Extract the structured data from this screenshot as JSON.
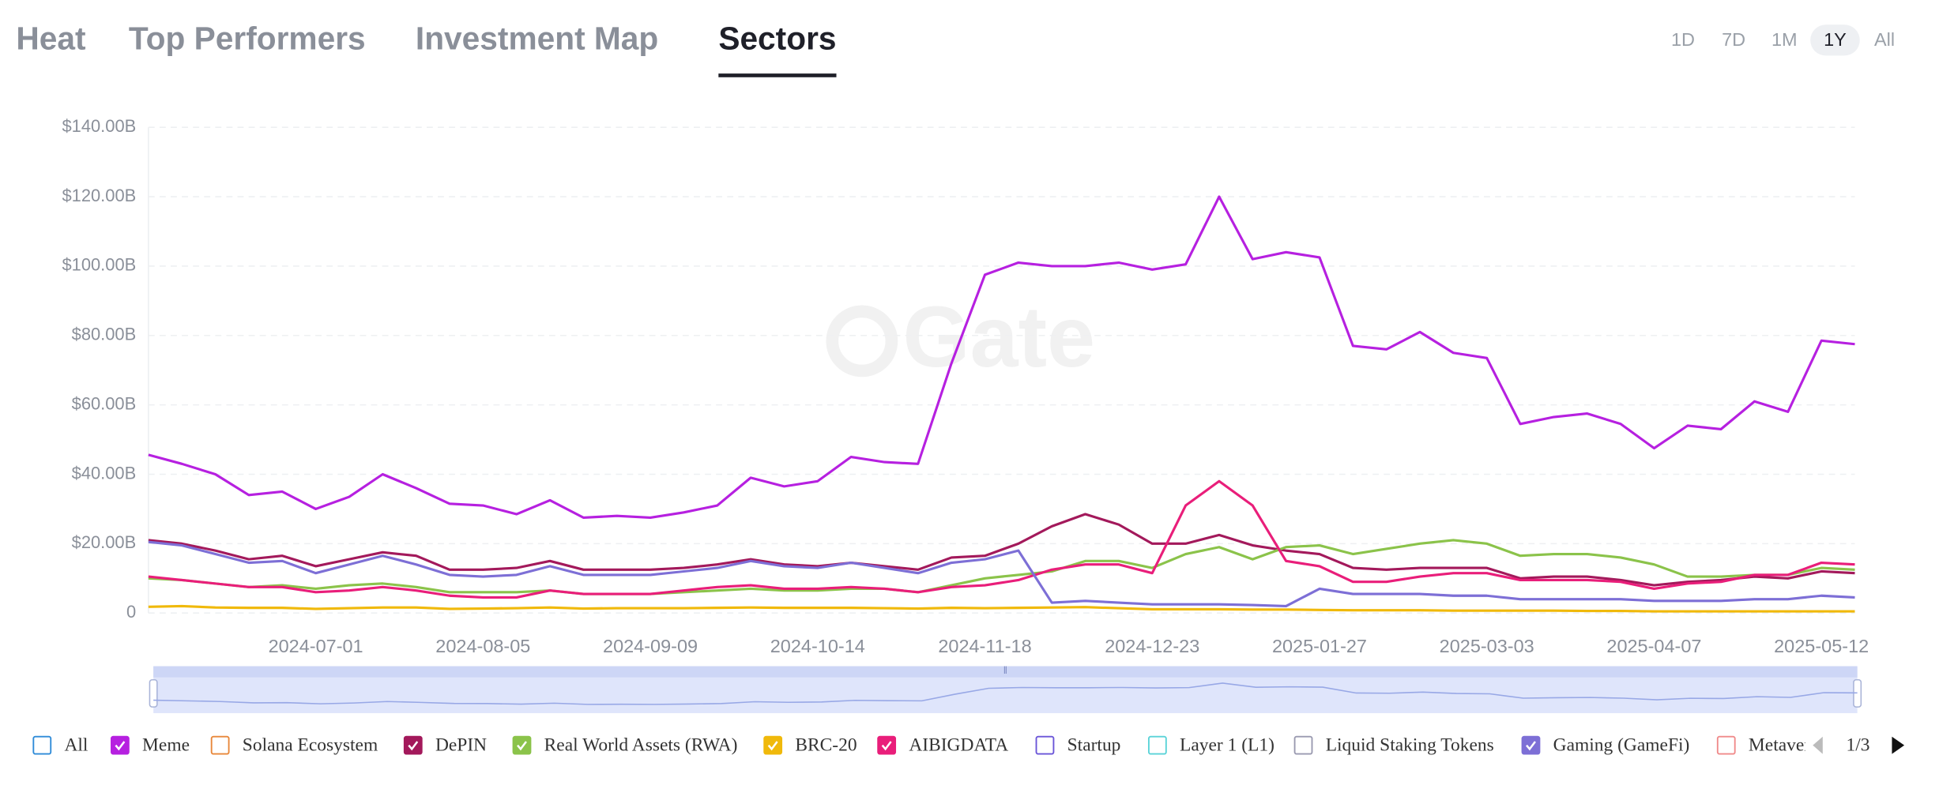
{
  "tabs": [
    "Heat",
    "Top Performers",
    "Investment Map",
    "Sectors"
  ],
  "active_tab": 3,
  "ranges": [
    "1D",
    "7D",
    "1M",
    "1Y",
    "All"
  ],
  "active_range": 3,
  "watermark": "Gate",
  "pagination": "1/3",
  "chart_data": {
    "type": "line",
    "categories": [
      null,
      null,
      null,
      null,
      null,
      "2024-07-01",
      null,
      null,
      null,
      null,
      "2024-08-05",
      null,
      null,
      null,
      null,
      "2024-09-09",
      null,
      null,
      null,
      null,
      "2024-10-14",
      null,
      null,
      null,
      null,
      "2024-11-18",
      null,
      null,
      null,
      null,
      "2024-12-23",
      null,
      null,
      null,
      null,
      "2025-01-27",
      null,
      null,
      null,
      null,
      "2025-03-03",
      null,
      null,
      null,
      null,
      "2025-04-07",
      null,
      null,
      null,
      null,
      "2025-05-12",
      null
    ],
    "ylim": [
      0,
      140
    ],
    "yticks": [
      0,
      {
        "value": 20,
        "label": "$20.00B"
      },
      {
        "value": 40,
        "label": "$40.00B"
      },
      {
        "value": 60,
        "label": "$60.00B"
      },
      {
        "value": 80,
        "label": "$80.00B"
      },
      {
        "value": 100,
        "label": "$100.00B"
      },
      {
        "value": 120,
        "label": "$120.00B"
      },
      {
        "value": 140,
        "label": "$140.00B"
      }
    ],
    "grid": true,
    "series": [
      {
        "name": "All",
        "color": "#2e8bd8",
        "checked": false
      },
      {
        "name": "Meme",
        "color": "#b620e0",
        "checked": true,
        "values": [
          45.6,
          43,
          40,
          34,
          35,
          30,
          33.5,
          40,
          36,
          31.5,
          31,
          28.5,
          32.5,
          27.5,
          28,
          27.5,
          29,
          31,
          39,
          36.5,
          38,
          45,
          43.5,
          43,
          72,
          97.5,
          101,
          100,
          100,
          101,
          99,
          100.5,
          120,
          102,
          104,
          102.5,
          77,
          76,
          81,
          75,
          73.5,
          54.5,
          56.5,
          57.5,
          54.5,
          47.5,
          54,
          53,
          61,
          58,
          78.5,
          77.5
        ]
      },
      {
        "name": "Solana Ecosystem",
        "color": "#e8873a",
        "checked": false
      },
      {
        "name": "DePIN",
        "color": "#a3195b",
        "checked": true,
        "values": [
          21,
          20,
          18,
          15.5,
          16.5,
          13.5,
          15.5,
          17.5,
          16.5,
          12.5,
          12.5,
          13,
          15,
          12.5,
          12.5,
          12.5,
          13,
          14,
          15.5,
          14,
          13.5,
          14.5,
          13.5,
          12.5,
          16,
          16.5,
          20,
          25,
          28.5,
          25.5,
          20,
          20,
          22.5,
          19.5,
          18,
          17,
          13,
          12.5,
          13,
          13,
          13,
          10,
          10.5,
          10.5,
          9.5,
          8,
          9,
          9.5,
          10.5,
          10,
          12,
          11.5
        ]
      },
      {
        "name": "Real World Assets (RWA)",
        "color": "#8bc34a",
        "checked": true,
        "values": [
          10,
          9.5,
          8.5,
          7.5,
          8,
          7,
          8,
          8.5,
          7.5,
          6,
          6,
          6,
          6.5,
          5.5,
          5.5,
          5.5,
          6,
          6.5,
          7,
          6.5,
          6.5,
          7,
          7,
          6,
          8,
          10,
          11,
          12,
          15,
          15,
          13,
          17,
          19,
          15.5,
          19,
          19.5,
          17,
          18.5,
          20,
          21,
          20,
          16.5,
          17,
          17,
          16,
          14,
          10.5,
          10.5,
          11,
          11,
          13,
          12.5
        ]
      },
      {
        "name": "BRC-20",
        "color": "#f0b90b",
        "checked": true,
        "values": [
          1.8,
          2,
          1.6,
          1.5,
          1.5,
          1.2,
          1.4,
          1.6,
          1.6,
          1.2,
          1.3,
          1.4,
          1.6,
          1.3,
          1.4,
          1.4,
          1.4,
          1.5,
          1.6,
          1.5,
          1.5,
          1.5,
          1.4,
          1.3,
          1.5,
          1.4,
          1.5,
          1.6,
          1.7,
          1.4,
          1.1,
          1.1,
          1.1,
          1,
          1,
          0.9,
          0.8,
          0.8,
          0.8,
          0.7,
          0.7,
          0.7,
          0.7,
          0.6,
          0.6,
          0.5,
          0.5,
          0.5,
          0.5,
          0.5,
          0.5,
          0.5
        ]
      },
      {
        "name": "AIBIGDATA",
        "color": "#e91e7a",
        "checked": true,
        "values": [
          10.5,
          9.5,
          8.5,
          7.5,
          7.5,
          6,
          6.5,
          7.5,
          6.5,
          5,
          4.5,
          4.5,
          6.5,
          5.5,
          5.5,
          5.5,
          6.5,
          7.5,
          8,
          7,
          7,
          7.5,
          7,
          6,
          7.5,
          8,
          9.5,
          12.5,
          14,
          14,
          11.5,
          31,
          38,
          31,
          15,
          13.5,
          9,
          9,
          10.5,
          11.5,
          11.5,
          9.5,
          9.5,
          9.5,
          9,
          7,
          8.5,
          9,
          11,
          11,
          14.5,
          14
        ]
      },
      {
        "name": "Startup",
        "color": "#6a55d8",
        "checked": false
      },
      {
        "name": "Layer 1 (L1)",
        "color": "#5ad3d8",
        "checked": false
      },
      {
        "name": "Liquid Staking Tokens",
        "color": "#9a9ab0",
        "checked": false
      },
      {
        "name": "Gaming (GameFi)",
        "color": "#7d6fd6",
        "checked": true,
        "values": [
          20.5,
          19.5,
          17,
          14.5,
          15,
          11.5,
          14,
          16.5,
          14,
          11,
          10.5,
          11,
          13.5,
          11,
          11,
          11,
          12,
          13,
          15,
          13.5,
          13,
          14.5,
          13,
          11.5,
          14.5,
          15.5,
          18,
          3,
          3.5,
          3,
          2.5,
          2.5,
          2.5,
          2.3,
          2,
          7,
          5.5,
          5.5,
          5.5,
          5,
          5,
          4,
          4,
          4,
          4,
          3.5,
          3.5,
          3.5,
          4,
          4,
          5,
          4.5
        ]
      },
      {
        "name": "Metaverse",
        "color": "#f08a8a",
        "checked": false
      }
    ]
  }
}
